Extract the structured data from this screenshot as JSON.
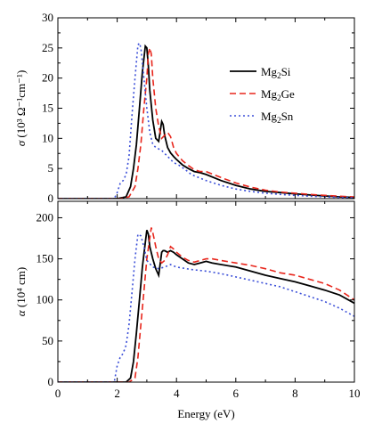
{
  "chart_data": [
    {
      "type": "line",
      "id": "top",
      "ylabel_main": "σ",
      "ylabel_rest": " (10³ Ω⁻¹cm⁻¹)",
      "xlim": [
        0,
        10
      ],
      "ylim": [
        0,
        30
      ],
      "xticks": [
        0,
        2,
        4,
        6,
        8,
        10
      ],
      "yticks": [
        0,
        5,
        10,
        15,
        20,
        25,
        30
      ],
      "legend_position": "top-right",
      "series": [
        {
          "name": "Mg₂Si",
          "base": "Mg",
          "sub": "2",
          "tail": "Si",
          "color": "#000000",
          "dash": "",
          "x": [
            0,
            2.0,
            2.3,
            2.45,
            2.55,
            2.65,
            2.75,
            2.85,
            2.95,
            3.0,
            3.05,
            3.1,
            3.2,
            3.3,
            3.4,
            3.5,
            3.55,
            3.6,
            3.7,
            3.8,
            3.9,
            4.0,
            4.2,
            4.4,
            4.6,
            4.8,
            5.0,
            5.5,
            6.0,
            6.5,
            7.0,
            7.5,
            8.0,
            8.5,
            9.0,
            9.5,
            10.0
          ],
          "y": [
            0,
            0,
            0.3,
            2,
            5,
            9,
            15,
            21,
            25.3,
            25,
            22,
            18,
            13,
            10,
            9.5,
            12.8,
            12.3,
            10.5,
            8.5,
            7.6,
            7,
            6.5,
            5.6,
            5,
            4.5,
            4.3,
            4,
            3,
            2.2,
            1.6,
            1.2,
            1,
            0.8,
            0.6,
            0.45,
            0.3,
            0.2
          ]
        },
        {
          "name": "Mg₂Ge",
          "base": "Mg",
          "sub": "2",
          "tail": "Ge",
          "color": "#e8261c",
          "dash": "7,4",
          "x": [
            0,
            2.1,
            2.4,
            2.6,
            2.7,
            2.8,
            2.9,
            3.0,
            3.05,
            3.1,
            3.15,
            3.2,
            3.3,
            3.4,
            3.5,
            3.6,
            3.7,
            3.8,
            3.9,
            4.0,
            4.2,
            4.4,
            4.6,
            4.8,
            5.0,
            5.5,
            6.0,
            6.5,
            7.0,
            7.5,
            8.0,
            8.5,
            9.0,
            9.5,
            10.0
          ],
          "y": [
            0,
            0,
            0.3,
            2,
            5,
            9,
            15,
            20,
            24,
            25,
            24,
            20,
            15,
            12,
            10,
            10.5,
            11,
            10.3,
            8.5,
            7.5,
            6.3,
            5.5,
            4.8,
            4.5,
            4.5,
            3.5,
            2.6,
            1.9,
            1.4,
            1.1,
            0.9,
            0.7,
            0.55,
            0.4,
            0.3
          ]
        },
        {
          "name": "Mg₂Sn",
          "base": "Mg",
          "sub": "2",
          "tail": "Sn",
          "color": "#3b4fd8",
          "dash": "2,3",
          "x": [
            0,
            1.9,
            2.0,
            2.1,
            2.2,
            2.3,
            2.4,
            2.5,
            2.6,
            2.7,
            2.75,
            2.8,
            2.9,
            3.0,
            3.1,
            3.2,
            3.3,
            3.5,
            3.7,
            3.9,
            4.1,
            4.3,
            4.5,
            5.0,
            5.5,
            6.0,
            6.5,
            7.0,
            7.5,
            8.0,
            8.5,
            9.0,
            9.5,
            10.0
          ],
          "y": [
            0,
            0,
            1,
            2.5,
            3,
            4,
            7,
            14,
            20,
            25.5,
            25.8,
            25,
            20,
            15,
            11,
            9,
            8.5,
            8,
            7,
            6,
            5.5,
            4.8,
            4,
            3,
            2.2,
            1.6,
            1.2,
            0.9,
            0.7,
            0.55,
            0.4,
            0.3,
            0.2,
            0.15
          ]
        }
      ]
    },
    {
      "type": "line",
      "id": "bottom",
      "ylabel_main": "α",
      "ylabel_rest": " (10⁴ cm)",
      "xlabel": "Energy (eV)",
      "xlim": [
        0,
        10
      ],
      "ylim": [
        0,
        220
      ],
      "xticks": [
        0,
        2,
        4,
        6,
        8,
        10
      ],
      "yticks": [
        0,
        50,
        100,
        150,
        200
      ],
      "series": [
        {
          "name": "Mg₂Si",
          "color": "#000000",
          "dash": "",
          "x": [
            0,
            2.3,
            2.45,
            2.55,
            2.65,
            2.75,
            2.85,
            2.95,
            3.0,
            3.05,
            3.1,
            3.2,
            3.3,
            3.4,
            3.5,
            3.55,
            3.6,
            3.7,
            3.8,
            3.9,
            4.0,
            4.2,
            4.4,
            4.6,
            4.8,
            5.0,
            5.2,
            5.5,
            6.0,
            6.5,
            7.0,
            7.5,
            8.0,
            8.5,
            9.0,
            9.5,
            10.0
          ],
          "y": [
            0,
            0,
            5,
            25,
            60,
            100,
            140,
            170,
            185,
            180,
            165,
            150,
            138,
            130,
            158,
            160,
            160,
            158,
            160,
            158,
            155,
            150,
            145,
            143,
            145,
            147,
            145,
            143,
            140,
            135,
            130,
            126,
            122,
            117,
            112,
            106,
            96
          ]
        },
        {
          "name": "Mg₂Ge",
          "color": "#e8261c",
          "dash": "7,4",
          "x": [
            0,
            2.4,
            2.6,
            2.7,
            2.8,
            2.9,
            3.0,
            3.1,
            3.15,
            3.2,
            3.3,
            3.4,
            3.5,
            3.6,
            3.7,
            3.8,
            3.9,
            4.0,
            4.2,
            4.4,
            4.6,
            4.8,
            5.0,
            5.2,
            5.5,
            6.0,
            6.5,
            7.0,
            7.5,
            8.0,
            8.5,
            9.0,
            9.5,
            10.0
          ],
          "y": [
            0,
            0,
            5,
            30,
            70,
            110,
            150,
            175,
            188,
            182,
            165,
            150,
            145,
            148,
            155,
            165,
            162,
            158,
            152,
            148,
            146,
            148,
            150,
            150,
            148,
            145,
            142,
            138,
            133,
            130,
            125,
            120,
            112,
            100
          ]
        },
        {
          "name": "Mg₂Sn",
          "color": "#3b4fd8",
          "dash": "2,3",
          "x": [
            0,
            1.9,
            2.0,
            2.1,
            2.2,
            2.3,
            2.4,
            2.5,
            2.6,
            2.7,
            2.8,
            2.9,
            3.0,
            3.2,
            3.4,
            3.6,
            3.8,
            4.0,
            4.5,
            5.0,
            5.5,
            6.0,
            6.5,
            7.0,
            7.5,
            8.0,
            8.5,
            9.0,
            9.5,
            10.0
          ],
          "y": [
            0,
            0,
            20,
            30,
            35,
            45,
            70,
            110,
            150,
            180,
            178,
            165,
            148,
            140,
            138,
            140,
            143,
            140,
            137,
            135,
            132,
            128,
            124,
            120,
            116,
            110,
            104,
            98,
            90,
            80
          ]
        }
      ]
    }
  ]
}
